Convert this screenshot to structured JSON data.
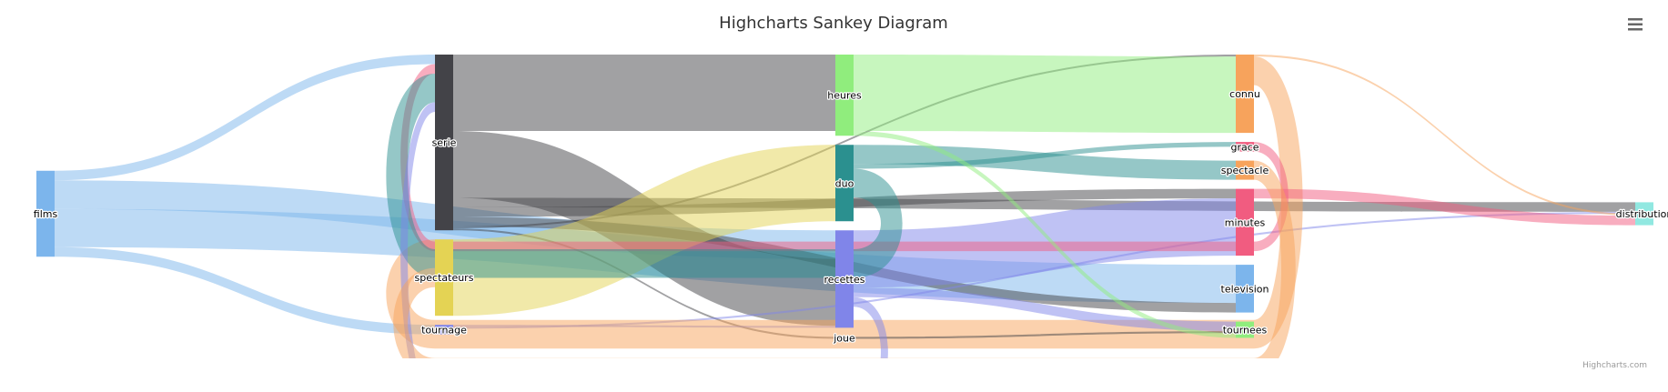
{
  "chart_data": {
    "type": "sankey",
    "title": "Highcharts Sankey Diagram",
    "credit": "Highcharts.com",
    "nodes": [
      {
        "id": "films",
        "column": 0,
        "color": "#7cb5ec"
      },
      {
        "id": "serie",
        "column": 1,
        "color": "#434348"
      },
      {
        "id": "spectateurs",
        "column": 1,
        "color": "#e4d354"
      },
      {
        "id": "tournage",
        "column": 1,
        "color": "#8085e9"
      },
      {
        "id": "heures",
        "column": 2,
        "color": "#90ed7d"
      },
      {
        "id": "duo",
        "column": 2,
        "color": "#2b908f"
      },
      {
        "id": "recettes",
        "column": 2,
        "color": "#8085e9"
      },
      {
        "id": "joue",
        "column": 2,
        "color": "#434348"
      },
      {
        "id": "connu",
        "column": 3,
        "color": "#f7a35c"
      },
      {
        "id": "grace",
        "column": 3,
        "color": "#f15c80"
      },
      {
        "id": "spectacle",
        "column": 3,
        "color": "#f7a35c"
      },
      {
        "id": "minutes",
        "column": 3,
        "color": "#f15c80"
      },
      {
        "id": "television",
        "column": 3,
        "color": "#7cb5ec"
      },
      {
        "id": "tournees",
        "column": 3,
        "color": "#90ed7d"
      },
      {
        "id": "distribution",
        "column": 4,
        "color": "#91e8e1"
      }
    ],
    "links": [
      {
        "from": "films",
        "to": "serie",
        "weight": 1
      },
      {
        "from": "films",
        "to": "recettes",
        "weight": 3
      },
      {
        "from": "films",
        "to": "television",
        "weight": 4
      },
      {
        "from": "films",
        "to": "tournage",
        "weight": 1
      },
      {
        "from": "serie",
        "to": "heures",
        "weight": 8
      },
      {
        "from": "serie",
        "to": "recettes",
        "weight": 7
      },
      {
        "from": "serie",
        "to": "distribution",
        "weight": 1
      },
      {
        "from": "serie",
        "to": "minutes",
        "weight": 1
      },
      {
        "from": "serie",
        "to": "television",
        "weight": 1
      },
      {
        "from": "serie",
        "to": "connu",
        "weight": 0.2
      },
      {
        "from": "serie",
        "to": "joue",
        "weight": 0.2
      },
      {
        "from": "spectateurs",
        "to": "duo",
        "weight": 8
      },
      {
        "from": "tournage",
        "to": "recettes",
        "weight": 0.2
      },
      {
        "from": "tournage",
        "to": "distribution",
        "weight": 0.2
      },
      {
        "from": "heures",
        "to": "connu",
        "weight": 8
      },
      {
        "from": "duo",
        "to": "spectacle",
        "weight": 2
      },
      {
        "from": "duo",
        "to": "grace",
        "weight": 0.5
      },
      {
        "from": "recettes",
        "to": "minutes",
        "weight": 6
      },
      {
        "from": "connu",
        "to": "distribution",
        "weight": 0.2
      },
      {
        "from": "connu",
        "to": "spectateurs",
        "weight": 3
      },
      {
        "from": "grace",
        "to": "serie",
        "weight": 1
      },
      {
        "from": "minutes",
        "to": "distribution",
        "weight": 1
      },
      {
        "from": "duo",
        "to": "serie",
        "weight": 3
      },
      {
        "from": "recettes",
        "to": "tournees",
        "weight": 1
      },
      {
        "from": "joue",
        "to": "tournees",
        "weight": 0.2
      },
      {
        "from": "recettes",
        "to": "serie",
        "weight": 1
      },
      {
        "from": "spectacle",
        "to": "spectateurs",
        "weight": 2
      },
      {
        "from": "heures",
        "to": "tournees",
        "weight": 0.5
      }
    ]
  },
  "toolbar": {
    "menu_icon": "hamburger-menu-icon"
  }
}
